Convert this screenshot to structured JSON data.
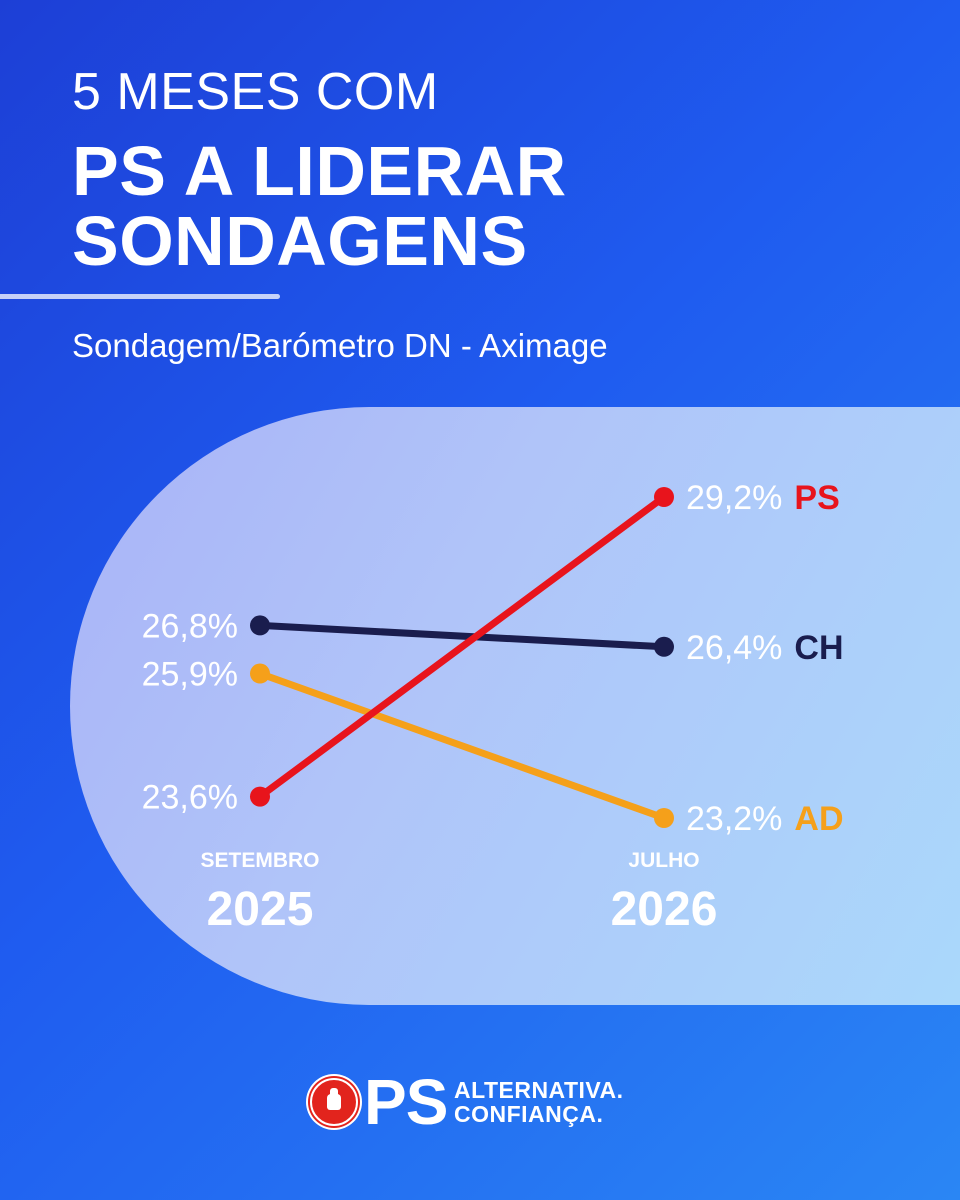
{
  "header": {
    "line1": "5 MESES COM",
    "line2": "PS A LIDERAR",
    "line3": "SONDAGENS",
    "subtitle": "Sondagem/Barómetro DN - Aximage"
  },
  "chart_data": {
    "type": "line",
    "categories": [
      {
        "month": "SETEMBRO",
        "year": "2025"
      },
      {
        "month": "JULHO",
        "year": "2026"
      }
    ],
    "ylim": [
      22,
      30
    ],
    "grid": false,
    "legend": "none",
    "series": [
      {
        "name": "PS",
        "color": "#e8141c",
        "values": [
          23.6,
          29.2
        ],
        "labels": [
          "23,6%",
          "29,2%"
        ]
      },
      {
        "name": "CH",
        "color": "#1a1d4e",
        "values": [
          26.8,
          26.4
        ],
        "labels": [
          "26,8%",
          "26,4%"
        ]
      },
      {
        "name": "AD",
        "color": "#f5a01a",
        "values": [
          25.9,
          23.2
        ],
        "labels": [
          "25,9%",
          "23,2%"
        ]
      }
    ]
  },
  "footer": {
    "party": "PS",
    "slogan_line1": "ALTERNATIVA.",
    "slogan_line2": "CONFIANÇA.",
    "logo_icon": "ps-fist-rose-logo-icon"
  }
}
